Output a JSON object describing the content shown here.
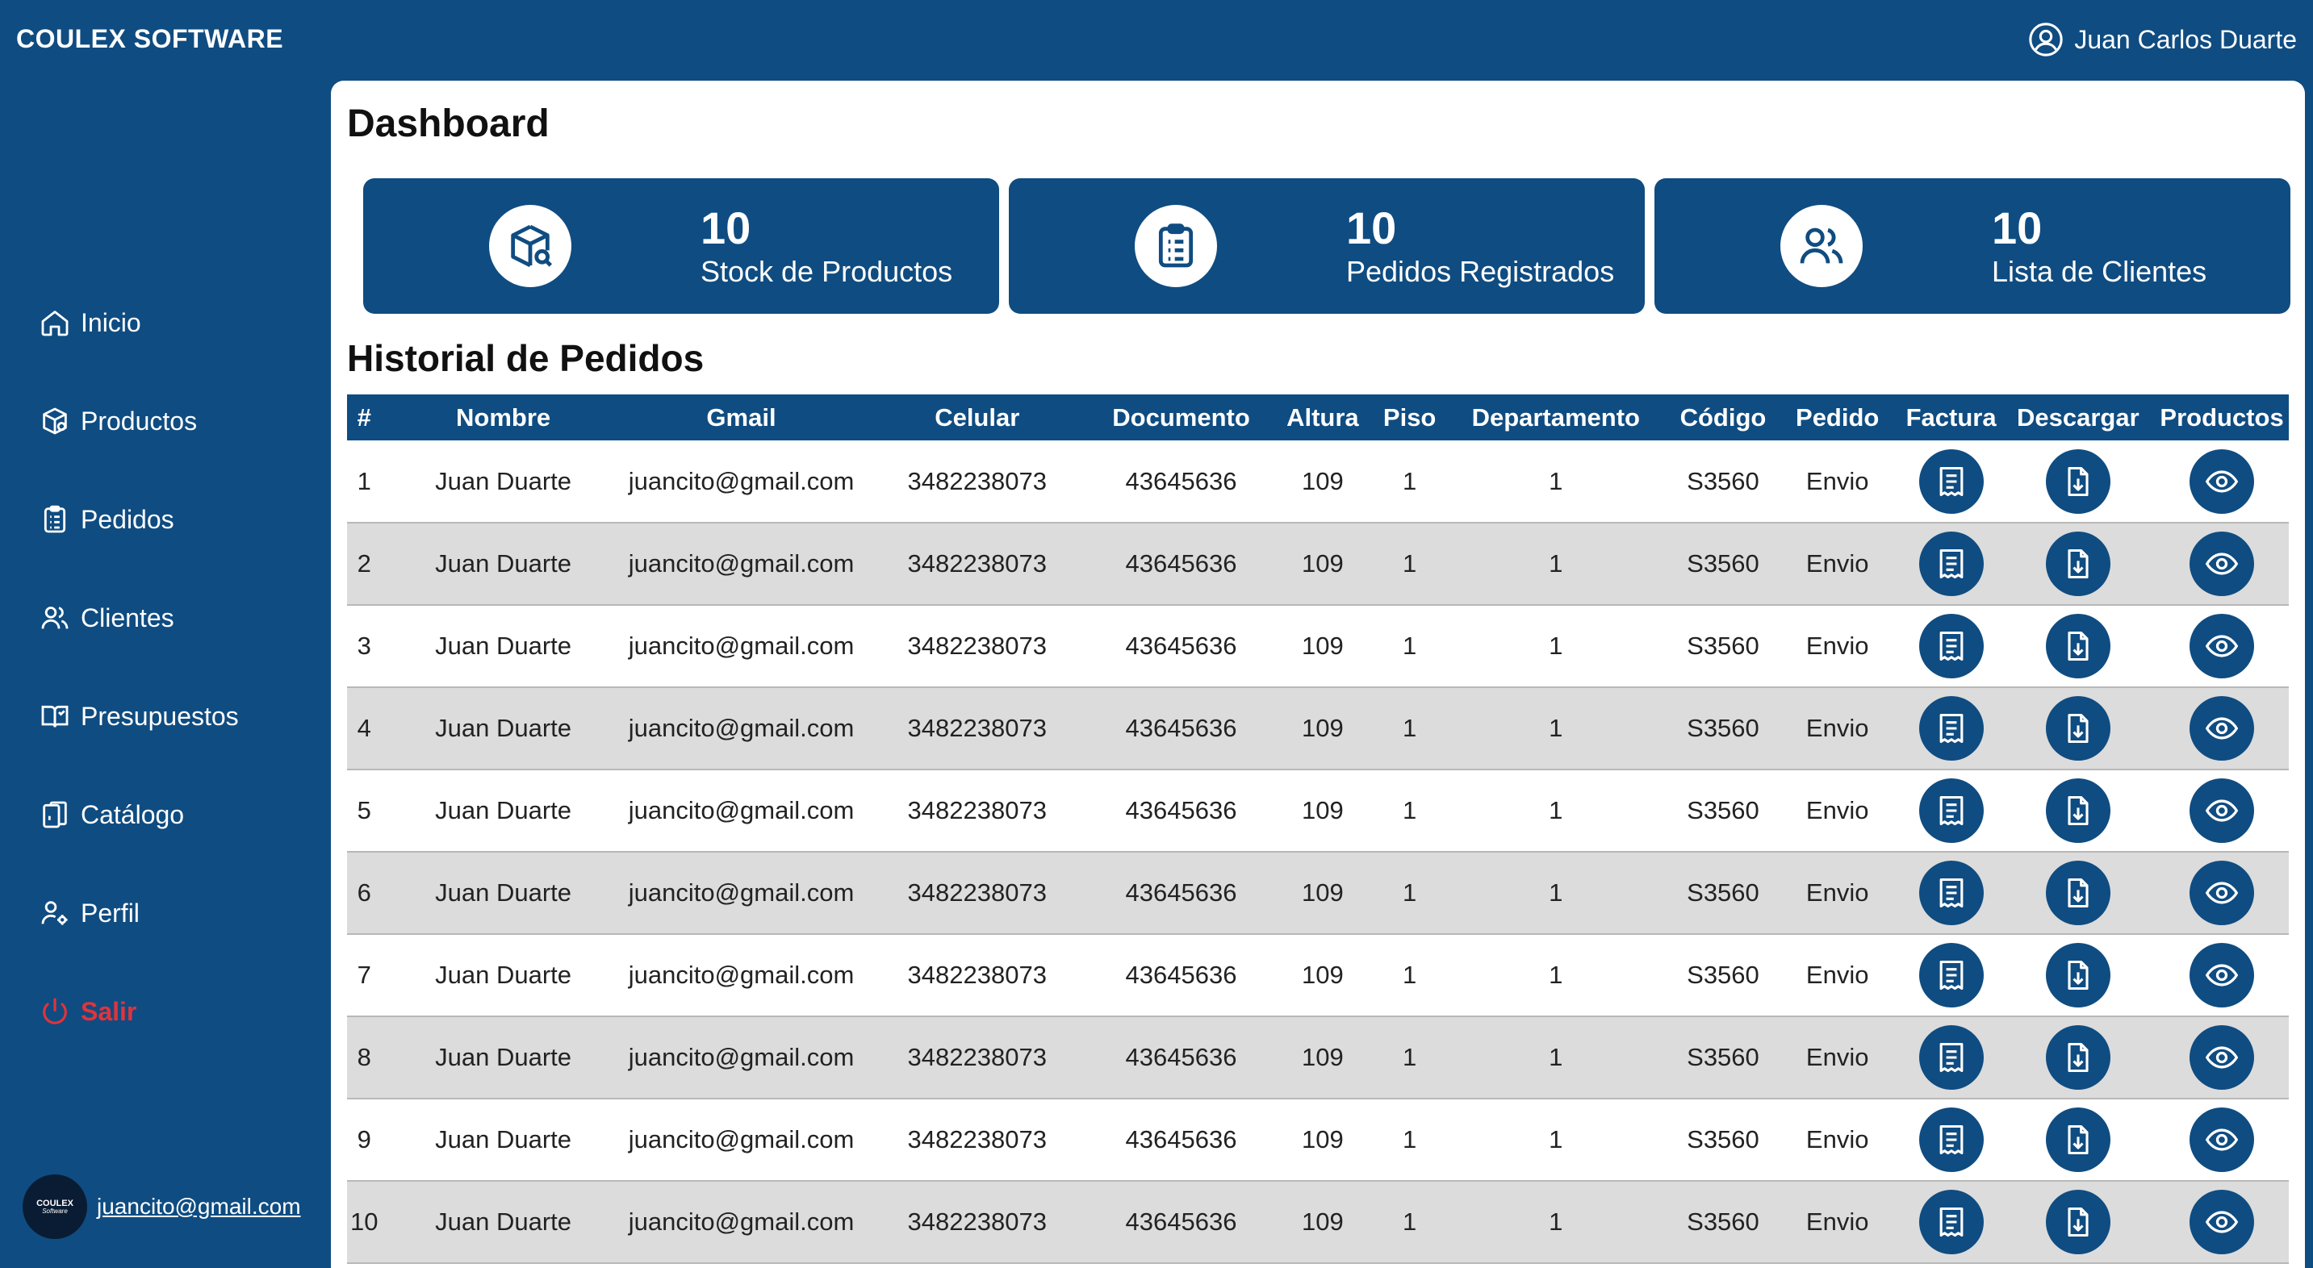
{
  "brand": "COULEX SOFTWARE",
  "user": {
    "name": "Juan Carlos Duarte",
    "icon": "user-circle-icon"
  },
  "sidebar": {
    "items": [
      {
        "label": "Inicio",
        "icon": "home-icon"
      },
      {
        "label": "Productos",
        "icon": "box-icon"
      },
      {
        "label": "Pedidos",
        "icon": "clipboard-icon"
      },
      {
        "label": "Clientes",
        "icon": "users-icon"
      },
      {
        "label": "Presupuestos",
        "icon": "book-icon"
      },
      {
        "label": "Catálogo",
        "icon": "catalog-icon"
      },
      {
        "label": "Perfil",
        "icon": "user-gear-icon"
      }
    ],
    "logout": {
      "label": "Salir",
      "icon": "power-icon",
      "color": "#e0343b"
    },
    "footer": {
      "avatar_line1": "COULEX",
      "avatar_line2": "Software",
      "email": "juancito@gmail.com"
    }
  },
  "main": {
    "title": "Dashboard",
    "cards": [
      {
        "value": "10",
        "label": "Stock de Productos",
        "icon": "box-search-icon"
      },
      {
        "value": "10",
        "label": "Pedidos Registrados",
        "icon": "clipboard-list-icon"
      },
      {
        "value": "10",
        "label": "Lista de Clientes",
        "icon": "users-icon"
      }
    ],
    "table_title": "Historial de Pedidos",
    "table": {
      "headers": [
        "#",
        "Nombre",
        "Gmail",
        "Celular",
        "Documento",
        "Altura",
        "Piso",
        "Departamento",
        "Código",
        "Pedido",
        "Factura",
        "Descargar",
        "Productos"
      ],
      "rows": [
        [
          "1",
          "Juan Duarte",
          "juancito@gmail.com",
          "3482238073",
          "43645636",
          "109",
          "1",
          "1",
          "S3560",
          "Envio"
        ],
        [
          "2",
          "Juan Duarte",
          "juancito@gmail.com",
          "3482238073",
          "43645636",
          "109",
          "1",
          "1",
          "S3560",
          "Envio"
        ],
        [
          "3",
          "Juan Duarte",
          "juancito@gmail.com",
          "3482238073",
          "43645636",
          "109",
          "1",
          "1",
          "S3560",
          "Envio"
        ],
        [
          "4",
          "Juan Duarte",
          "juancito@gmail.com",
          "3482238073",
          "43645636",
          "109",
          "1",
          "1",
          "S3560",
          "Envio"
        ],
        [
          "5",
          "Juan Duarte",
          "juancito@gmail.com",
          "3482238073",
          "43645636",
          "109",
          "1",
          "1",
          "S3560",
          "Envio"
        ],
        [
          "6",
          "Juan Duarte",
          "juancito@gmail.com",
          "3482238073",
          "43645636",
          "109",
          "1",
          "1",
          "S3560",
          "Envio"
        ],
        [
          "7",
          "Juan Duarte",
          "juancito@gmail.com",
          "3482238073",
          "43645636",
          "109",
          "1",
          "1",
          "S3560",
          "Envio"
        ],
        [
          "8",
          "Juan Duarte",
          "juancito@gmail.com",
          "3482238073",
          "43645636",
          "109",
          "1",
          "1",
          "S3560",
          "Envio"
        ],
        [
          "9",
          "Juan Duarte",
          "juancito@gmail.com",
          "3482238073",
          "43645636",
          "109",
          "1",
          "1",
          "S3560",
          "Envio"
        ],
        [
          "10",
          "Juan Duarte",
          "juancito@gmail.com",
          "3482238073",
          "43645636",
          "109",
          "1",
          "1",
          "S3560",
          "Envio"
        ]
      ],
      "row_actions": [
        "receipt-icon",
        "file-download-icon",
        "eye-icon"
      ]
    }
  },
  "colors": {
    "primary": "#0f4c81",
    "row_alt": "#dcdcdc",
    "danger": "#e0343b"
  }
}
